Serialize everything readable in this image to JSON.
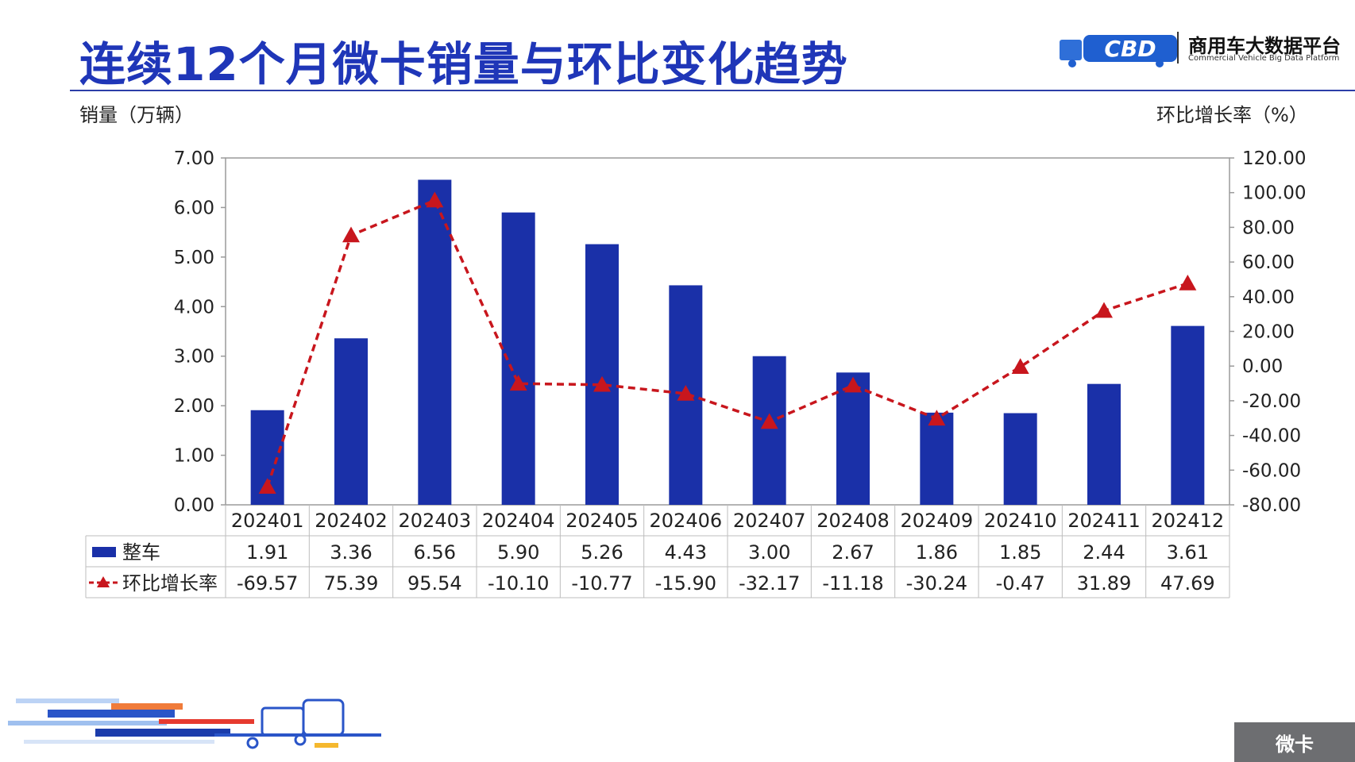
{
  "title": "连续12个月微卡销量与环比变化趋势",
  "logo": {
    "zh": "商用车大数据平台",
    "en": "Commercial Vehicle Big Data Platform",
    "mark": "CBD"
  },
  "corner_tag": "微卡",
  "chart_data": {
    "type": "bar+line",
    "categories": [
      "202401",
      "202402",
      "202403",
      "202404",
      "202405",
      "202406",
      "202407",
      "202408",
      "202409",
      "202410",
      "202411",
      "202412"
    ],
    "left_axis_title": "销量（万辆）",
    "right_axis_title": "环比增长率（%）",
    "left_axis": {
      "min": 0,
      "max": 7,
      "step": 1,
      "ticks": [
        "0.00",
        "1.00",
        "2.00",
        "3.00",
        "4.00",
        "5.00",
        "6.00",
        "7.00"
      ]
    },
    "right_axis": {
      "min": -80,
      "max": 120,
      "step": 20,
      "ticks": [
        "-80.00",
        "-60.00",
        "-40.00",
        "-20.00",
        "0.00",
        "20.00",
        "40.00",
        "60.00",
        "80.00",
        "100.00",
        "120.00"
      ]
    },
    "series": [
      {
        "name": "整车",
        "type": "bar",
        "axis": "left",
        "color": "#1a30a8",
        "values": [
          1.91,
          3.36,
          6.56,
          5.9,
          5.26,
          4.43,
          3.0,
          2.67,
          1.86,
          1.85,
          2.44,
          3.61
        ],
        "labels": [
          "1.91",
          "3.36",
          "6.56",
          "5.90",
          "5.26",
          "4.43",
          "3.00",
          "2.67",
          "1.86",
          "1.85",
          "2.44",
          "3.61"
        ]
      },
      {
        "name": "环比增长率",
        "type": "line",
        "axis": "right",
        "color": "#c8161d",
        "dashed": true,
        "marker": "triangle",
        "values": [
          -69.57,
          75.39,
          95.54,
          -10.1,
          -10.77,
          -15.9,
          -32.17,
          -11.18,
          -30.24,
          -0.47,
          31.89,
          47.69
        ],
        "labels": [
          "-69.57",
          "75.39",
          "95.54",
          "-10.10",
          "-10.77",
          "-15.90",
          "-32.17",
          "-11.18",
          "-30.24",
          "-0.47",
          "31.89",
          "47.69"
        ]
      }
    ],
    "data_table": true,
    "grid": false
  }
}
